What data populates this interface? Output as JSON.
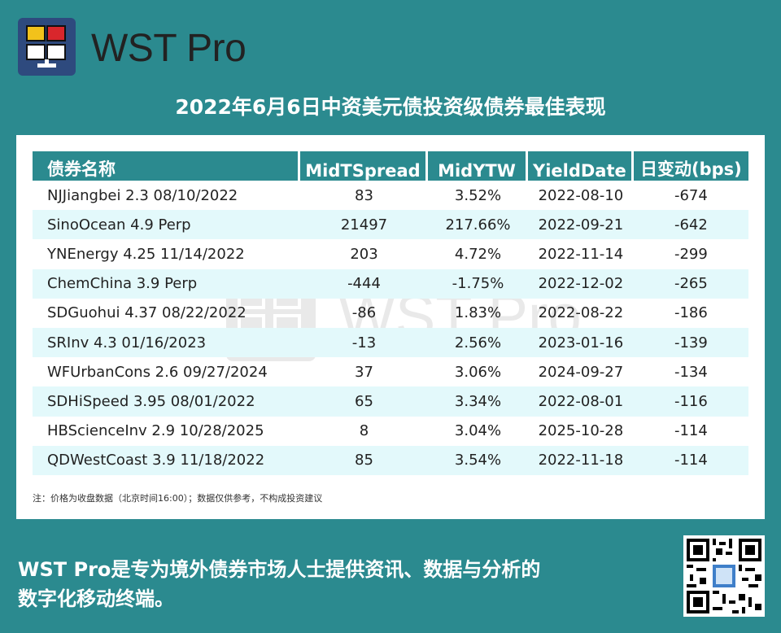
{
  "brand": {
    "name": "WST Pro"
  },
  "title": "2022年6月6日中资美元债投资级债券最佳表现",
  "table": {
    "headers": [
      "债券名称",
      "MidTSpread",
      "MidYTW",
      "YieldDate",
      "日变动(bps)"
    ],
    "rows": [
      [
        "NJJiangbei 2.3 08/10/2022",
        "83",
        "3.52%",
        "2022-08-10",
        "-674"
      ],
      [
        "SinoOcean 4.9 Perp",
        "21497",
        "217.66%",
        "2022-09-21",
        "-642"
      ],
      [
        "YNEnergy 4.25 11/14/2022",
        "203",
        "4.72%",
        "2022-11-14",
        "-299"
      ],
      [
        "ChemChina 3.9 Perp",
        "-444",
        "-1.75%",
        "2022-12-02",
        "-265"
      ],
      [
        "SDGuohui 4.37 08/22/2022",
        "-86",
        "1.83%",
        "2022-08-22",
        "-186"
      ],
      [
        "SRInv 4.3 01/16/2023",
        "-13",
        "2.56%",
        "2023-01-16",
        "-139"
      ],
      [
        "WFUrbanCons 2.6 09/27/2024",
        "37",
        "3.06%",
        "2024-09-27",
        "-134"
      ],
      [
        "SDHiSpeed 3.95 08/01/2022",
        "65",
        "3.34%",
        "2022-08-01",
        "-116"
      ],
      [
        "HBScienceInv 2.9 10/28/2025",
        "8",
        "3.04%",
        "2025-10-28",
        "-114"
      ],
      [
        "QDWestCoast 3.9 11/18/2022",
        "85",
        "3.54%",
        "2022-11-18",
        "-114"
      ]
    ]
  },
  "note": "注：价格为收盘数据（北京时间16:00）；数据仅供参考，不构成投资建议",
  "watermark": "WST Pro",
  "footer": {
    "line1": "WST Pro是专为境外债券市场人士提供资讯、数据与分析的",
    "line2": "数字化移动终端。"
  },
  "colors": {
    "background": "#2b8a8f",
    "header_fill": "#2b8a8f",
    "stripe": "#e3f9fb",
    "logo_bg": "#2e4a7e"
  },
  "icons": {
    "logo": "wst-monitor-logo-icon",
    "qr": "qr-code-icon"
  }
}
